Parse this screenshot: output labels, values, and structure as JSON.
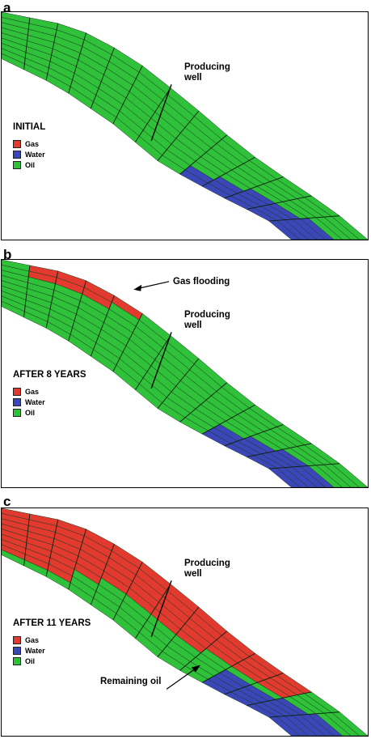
{
  "colors": {
    "gas": "#e23a2e",
    "water": "#3b46b8",
    "oil": "#2fc13a"
  },
  "legend": [
    {
      "label": "Gas",
      "color": "#e23a2e"
    },
    {
      "label": "Water",
      "color": "#3b46b8"
    },
    {
      "label": "Oil",
      "color": "#2fc13a"
    }
  ],
  "panels": [
    {
      "letter": "a",
      "stage": "INITIAL",
      "well_label_1": "Producing",
      "well_label_2": "well"
    },
    {
      "letter": "b",
      "stage": "AFTER 8 YEARS",
      "well_label_1": "Producing",
      "well_label_2": "well",
      "annotation": "Gas flooding"
    },
    {
      "letter": "c",
      "stage": "AFTER 11 YEARS",
      "well_label_1": "Producing",
      "well_label_2": "well",
      "annotation": "Remaining oil"
    }
  ]
}
